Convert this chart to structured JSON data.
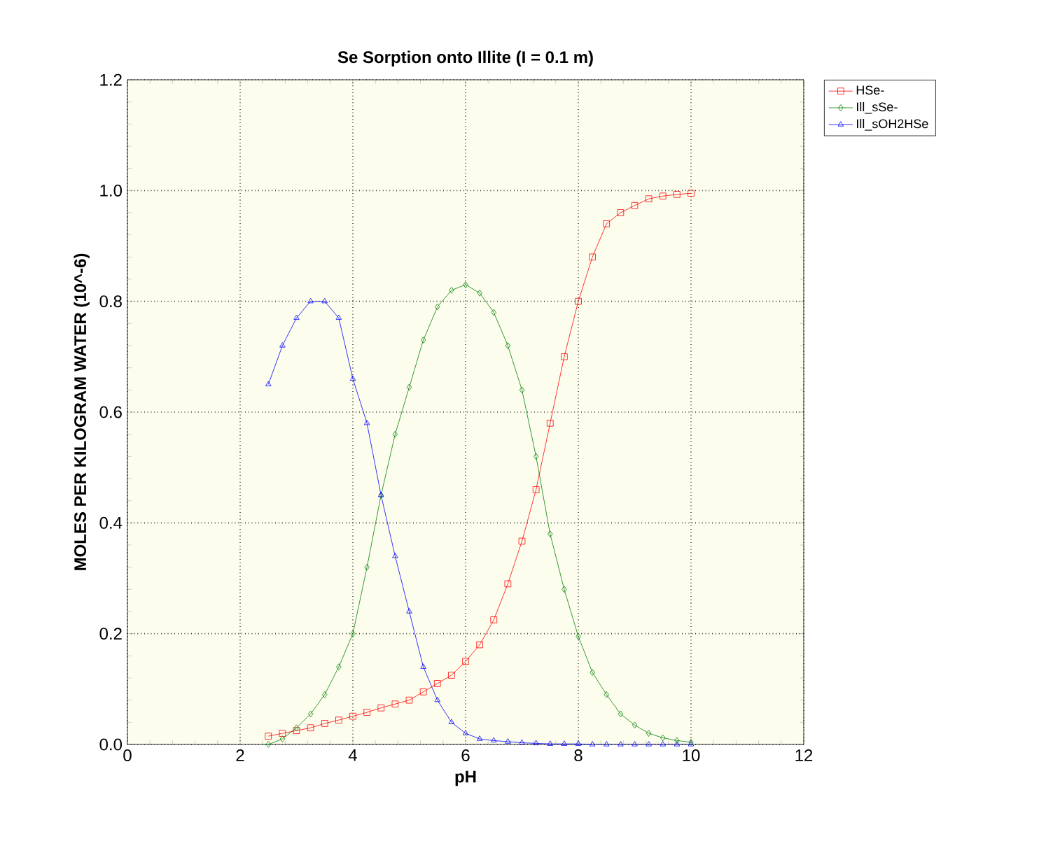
{
  "chart_data": {
    "type": "line",
    "title": "Se Sorption onto Illite (I = 0.1 m)",
    "xlabel": "pH",
    "ylabel": "MOLES PER KILOGRAM WATER (10^-6)",
    "x": [
      2.5,
      2.75,
      3,
      3.25,
      3.5,
      3.75,
      4,
      4.25,
      4.5,
      4.75,
      5,
      5.25,
      5.5,
      5.75,
      6,
      6.25,
      6.5,
      6.75,
      7,
      7.25,
      7.5,
      7.75,
      8,
      8.25,
      8.5,
      8.75,
      9,
      9.25,
      9.5,
      9.75,
      10
    ],
    "series": [
      {
        "name": "HSe-",
        "color": "#ff0000",
        "marker": "square",
        "values": [
          0.015,
          0.02,
          0.025,
          0.03,
          0.038,
          0.044,
          0.051,
          0.058,
          0.066,
          0.073,
          0.08,
          0.095,
          0.11,
          0.125,
          0.15,
          0.18,
          0.225,
          0.29,
          0.367,
          0.46,
          0.58,
          0.7,
          0.8,
          0.88,
          0.94,
          0.96,
          0.973,
          0.985,
          0.99,
          0.993,
          0.995
        ]
      },
      {
        "name": "Ill_sSe-",
        "color": "#008000",
        "marker": "diamond",
        "values": [
          0.0,
          0.01,
          0.03,
          0.055,
          0.09,
          0.14,
          0.2,
          0.32,
          0.45,
          0.56,
          0.645,
          0.73,
          0.79,
          0.82,
          0.83,
          0.815,
          0.78,
          0.72,
          0.64,
          0.52,
          0.38,
          0.28,
          0.195,
          0.13,
          0.09,
          0.055,
          0.035,
          0.02,
          0.012,
          0.007,
          0.004
        ]
      },
      {
        "name": "Ill_sOH2HSe",
        "color": "#0000ff",
        "marker": "triangle",
        "values": [
          0.65,
          0.72,
          0.77,
          0.8,
          0.8,
          0.77,
          0.66,
          0.58,
          0.45,
          0.34,
          0.24,
          0.14,
          0.08,
          0.04,
          0.02,
          0.01,
          0.007,
          0.005,
          0.003,
          0.002,
          0.001,
          0.001,
          0.001,
          0.0,
          0.0,
          0.0,
          0.0,
          0.0,
          0.0,
          0.0,
          0.0
        ]
      }
    ],
    "xlim": [
      0,
      12
    ],
    "ylim": [
      0,
      1.2
    ],
    "xticks": [
      0,
      2,
      4,
      6,
      8,
      10,
      12
    ],
    "yticks": [
      {
        "value": 0,
        "label": "0.0"
      },
      {
        "value": 0.2,
        "label": "0.2"
      },
      {
        "value": 0.4,
        "label": "0.4"
      },
      {
        "value": 0.6,
        "label": "0.6"
      },
      {
        "value": 0.8,
        "label": "0.8"
      },
      {
        "value": 1.0,
        "label": "1.0"
      },
      {
        "value": 1.2,
        "label": "1.2"
      }
    ],
    "grid": true,
    "legend": "top right",
    "line_style": "solid"
  }
}
